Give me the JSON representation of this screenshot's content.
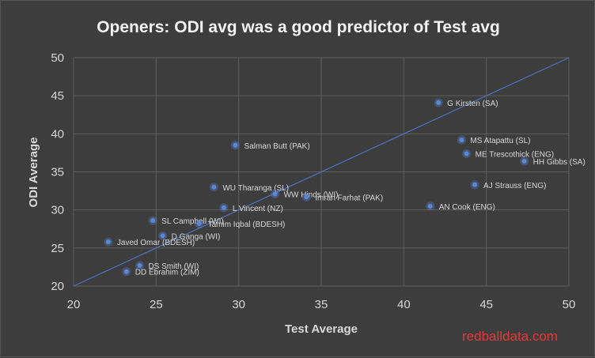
{
  "chart_data": {
    "type": "scatter",
    "title": "Openers: ODI avg was a good predictor of Test avg",
    "xlabel": "Test Average",
    "ylabel": "ODI Average",
    "xlim": [
      20,
      50
    ],
    "ylim": [
      20,
      50
    ],
    "xticks": [
      20,
      25,
      30,
      35,
      40,
      45,
      50
    ],
    "yticks": [
      20,
      25,
      30,
      35,
      40,
      45,
      50
    ],
    "grid": "vertical-and-horizontal",
    "trendline": {
      "x": [
        20,
        50
      ],
      "y": [
        20,
        50
      ]
    },
    "points": [
      {
        "label": "G Kirsten (SA)",
        "x": 42.1,
        "y": 44.1
      },
      {
        "label": "MS Atapattu (SL)",
        "x": 43.5,
        "y": 39.2
      },
      {
        "label": "ME Trescothick (ENG)",
        "x": 43.8,
        "y": 37.4
      },
      {
        "label": "HH Gibbs (SA)",
        "x": 47.3,
        "y": 36.4
      },
      {
        "label": "AJ Strauss (ENG)",
        "x": 44.3,
        "y": 33.3
      },
      {
        "label": "AN Cook (ENG)",
        "x": 41.6,
        "y": 30.5
      },
      {
        "label": "Salman Butt (PAK)",
        "x": 29.8,
        "y": 38.5
      },
      {
        "label": "WU Tharanga (SL)",
        "x": 28.5,
        "y": 33.0
      },
      {
        "label": "WW Hinds (WI)",
        "x": 32.2,
        "y": 32.1
      },
      {
        "label": "Imran Farhat (PAK)",
        "x": 34.1,
        "y": 31.7
      },
      {
        "label": "L Vincent (NZ)",
        "x": 29.1,
        "y": 30.3
      },
      {
        "label": "SL Campbell (WI)",
        "x": 24.8,
        "y": 28.6
      },
      {
        "label": "Tamim Iqbal (BDESH)",
        "x": 27.6,
        "y": 28.2
      },
      {
        "label": "D Ganga (WI)",
        "x": 25.4,
        "y": 26.6
      },
      {
        "label": "Javed Omar (BDESH)",
        "x": 22.1,
        "y": 25.8
      },
      {
        "label": "DS Smith (WI)",
        "x": 24.0,
        "y": 22.7
      },
      {
        "label": "DD Ebrahim (ZIM)",
        "x": 23.2,
        "y": 21.9
      }
    ],
    "colors": {
      "background": "#3d3d3d",
      "grid": "#5e5e5e",
      "point": "#5b86d6",
      "trendline": "#4f72be",
      "text": "#d9d9d9"
    }
  },
  "watermark": "redballdata.com"
}
